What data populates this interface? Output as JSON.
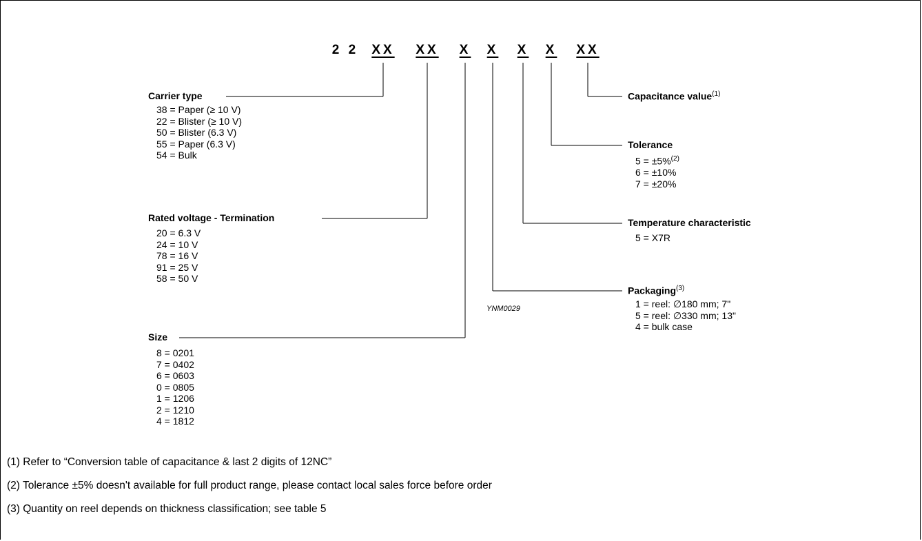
{
  "code": {
    "prefix": "2 2",
    "groups": [
      "XX",
      "XX",
      "X",
      "X",
      "X",
      "X",
      "XX"
    ]
  },
  "carrier_type": {
    "title": "Carrier type",
    "items": [
      "38 = Paper (≥ 10 V)",
      "22 = Blister (≥ 10 V)",
      "50 = Blister (6.3 V)",
      "55 = Paper (6.3 V)",
      "54 = Bulk"
    ]
  },
  "rated_voltage": {
    "title": "Rated voltage - Termination",
    "items": [
      "20 = 6.3 V",
      "24 = 10 V",
      "78 = 16 V",
      "91 = 25 V",
      "58 = 50 V"
    ]
  },
  "size": {
    "title": "Size",
    "items": [
      "8 = 0201",
      "7 = 0402",
      "6 = 0603",
      "0 = 0805",
      "1 = 1206",
      "2 = 1210",
      "4 = 1812"
    ]
  },
  "capacitance": {
    "title": "Capacitance value",
    "note_ref": "(1)"
  },
  "tolerance": {
    "title": "Tolerance",
    "items": [
      "5 = ±5%",
      "6 = ±10%",
      "7 = ±20%"
    ],
    "first_item_note_ref": "(2)"
  },
  "temperature": {
    "title": "Temperature characteristic",
    "items": [
      "5 = X7R"
    ]
  },
  "packaging": {
    "title": "Packaging",
    "note_ref": "(3)",
    "items": [
      "1 = reel: ∅180 mm; 7\"",
      "5 = reel: ∅330 mm; 13\"",
      "4 = bulk case"
    ]
  },
  "figure_ref": "YNM0029",
  "footnotes": [
    "(1)  Refer to “Conversion table of capacitance & last 2 digits of 12NC”",
    "(2)  Tolerance ±5% doesn't available for full product range, please contact local sales force before order",
    "(3)  Quantity on reel depends on thickness classification; see table 5"
  ]
}
